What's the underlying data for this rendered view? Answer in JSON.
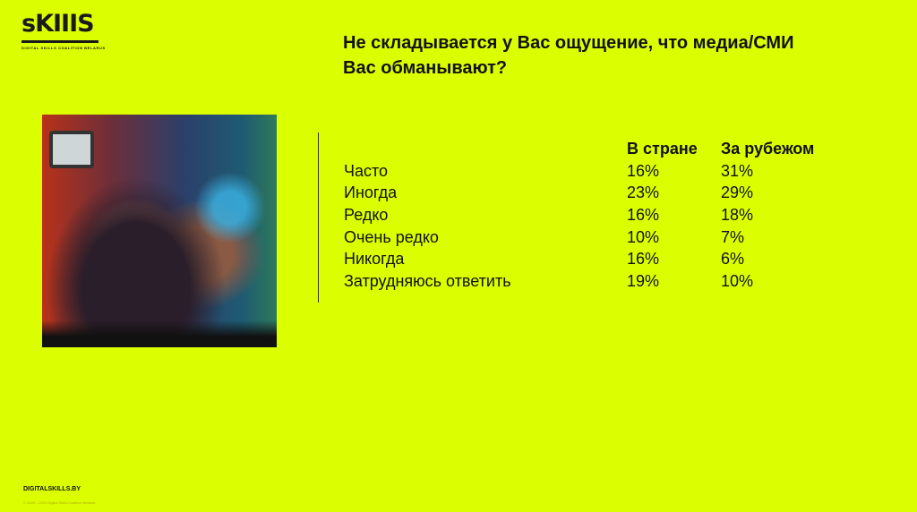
{
  "logo": {
    "text": "sKIIIS",
    "subtitle": "DIGITAL SKILLS COALITION BELARUS"
  },
  "title": "Не складывается у Вас ощущение, что медиа/СМИ Вас обманывают?",
  "colors": {
    "background": "#dcff00",
    "text": "#111111"
  },
  "table": {
    "headers": [
      "",
      "В стране",
      "За рубежом"
    ],
    "rows": [
      [
        "Часто",
        "16%",
        "31%"
      ],
      [
        "Иногда",
        "23%",
        "29%"
      ],
      [
        "Редко",
        "16%",
        "18%"
      ],
      [
        "Очень редко",
        "10%",
        "7%"
      ],
      [
        "Никогда",
        "16%",
        "6%"
      ],
      [
        "Затрудняюсь ответить",
        "19%",
        "10%"
      ]
    ]
  },
  "footer": {
    "site": "DIGITALSKILLS.BY",
    "copyright": "© 2020 – 2023 Digital Skills Coalition Belarus"
  }
}
